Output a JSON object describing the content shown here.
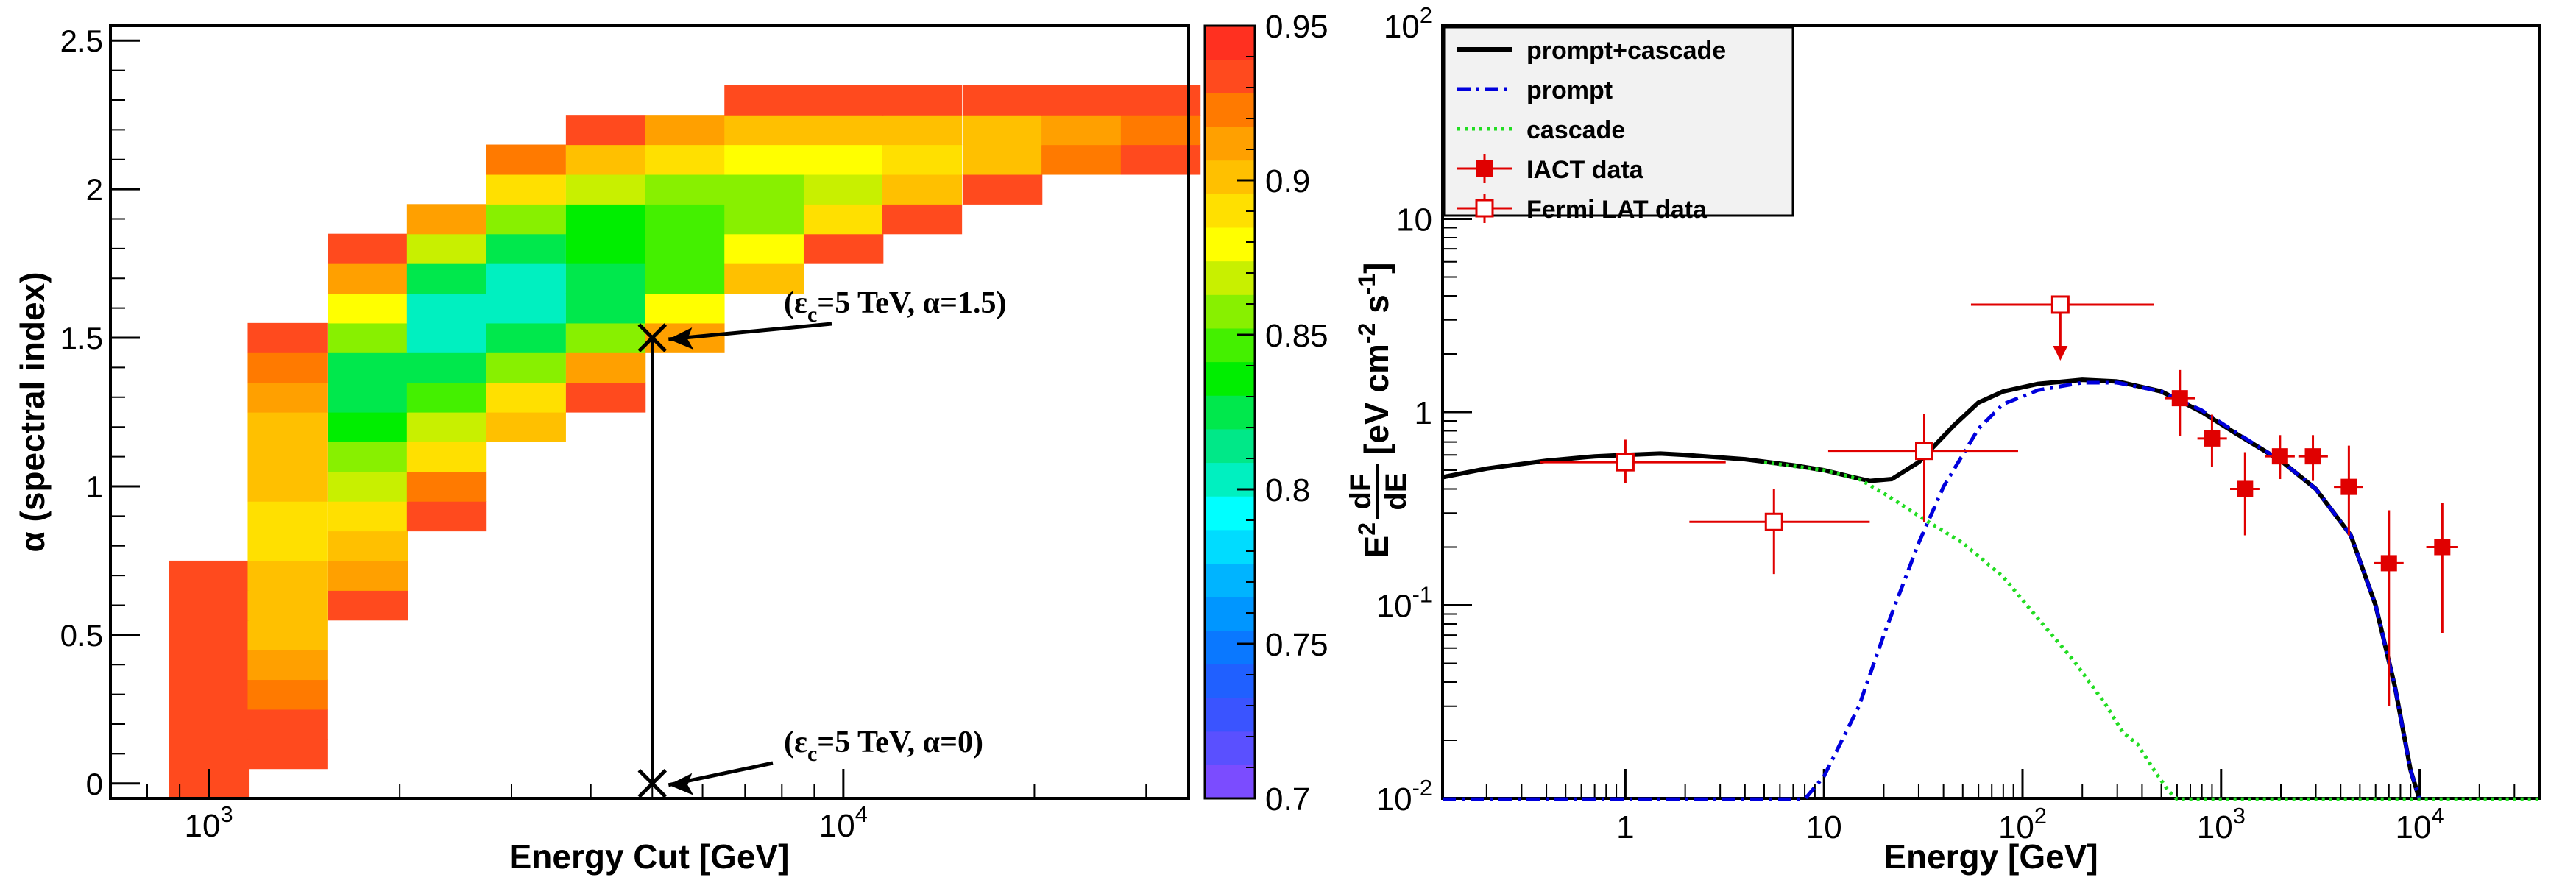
{
  "chart_data": [
    {
      "type": "heatmap",
      "xlabel": "Energy Cut [GeV]",
      "ylabel": "α (spectral index)",
      "x_scale": "log",
      "xlim": [
        700,
        35000
      ],
      "ylim": [
        -0.05,
        2.55
      ],
      "x_ticks": [
        {
          "value": 1000,
          "base": "10",
          "exp": "3"
        },
        {
          "value": 10000,
          "base": "10",
          "exp": "4"
        }
      ],
      "y_ticks": [
        {
          "value": 0,
          "label": "0"
        },
        {
          "value": 0.5,
          "label": "0.5"
        },
        {
          "value": 1,
          "label": "1"
        },
        {
          "value": 1.5,
          "label": "1.5"
        },
        {
          "value": 2,
          "label": "2"
        },
        {
          "value": 2.5,
          "label": "2.5"
        }
      ],
      "energy_bins": [
        1000,
        1330,
        1780,
        2370,
        3160,
        4220,
        5620,
        7500,
        10000,
        13300,
        17800,
        23700,
        31600
      ],
      "alpha_bins": [
        0,
        0.1,
        0.2,
        0.3,
        0.4,
        0.5,
        0.6,
        0.7,
        0.8,
        0.9,
        1.0,
        1.1,
        1.2,
        1.3,
        1.4,
        1.5,
        1.6,
        1.7,
        1.8,
        1.9,
        2.0,
        2.1,
        2.2,
        2.3
      ],
      "cell_size": {
        "log10_energy": 0.125,
        "alpha": 0.1
      },
      "z": [
        [
          0.93,
          null,
          null,
          null,
          null,
          null,
          null,
          null,
          null,
          null,
          null,
          null,
          null
        ],
        [
          0.93,
          0.93,
          null,
          null,
          null,
          null,
          null,
          null,
          null,
          null,
          null,
          null,
          null
        ],
        [
          0.93,
          0.93,
          null,
          null,
          null,
          null,
          null,
          null,
          null,
          null,
          null,
          null,
          null
        ],
        [
          0.93,
          0.92,
          null,
          null,
          null,
          null,
          null,
          null,
          null,
          null,
          null,
          null,
          null
        ],
        [
          0.93,
          0.91,
          null,
          null,
          null,
          null,
          null,
          null,
          null,
          null,
          null,
          null,
          null
        ],
        [
          0.93,
          0.9,
          null,
          null,
          null,
          null,
          null,
          null,
          null,
          null,
          null,
          null,
          null
        ],
        [
          0.93,
          0.9,
          0.93,
          null,
          null,
          null,
          null,
          null,
          null,
          null,
          null,
          null,
          null
        ],
        [
          0.93,
          0.9,
          0.91,
          null,
          null,
          null,
          null,
          null,
          null,
          null,
          null,
          null,
          null
        ],
        [
          null,
          0.89,
          0.9,
          null,
          null,
          null,
          null,
          null,
          null,
          null,
          null,
          null,
          null
        ],
        [
          null,
          0.89,
          0.89,
          0.93,
          null,
          null,
          null,
          null,
          null,
          null,
          null,
          null,
          null
        ],
        [
          null,
          0.9,
          0.87,
          0.92,
          null,
          null,
          null,
          null,
          null,
          null,
          null,
          null,
          null
        ],
        [
          null,
          0.9,
          0.86,
          0.89,
          null,
          null,
          null,
          null,
          null,
          null,
          null,
          null,
          null
        ],
        [
          null,
          0.9,
          0.84,
          0.87,
          0.9,
          null,
          null,
          null,
          null,
          null,
          null,
          null,
          null
        ],
        [
          null,
          0.91,
          0.83,
          0.85,
          0.89,
          0.93,
          null,
          null,
          null,
          null,
          null,
          null,
          null
        ],
        [
          null,
          0.92,
          0.83,
          0.82,
          0.86,
          0.91,
          null,
          null,
          null,
          null,
          null,
          null,
          null
        ],
        [
          null,
          0.93,
          0.86,
          0.8,
          0.83,
          0.86,
          0.91,
          null,
          null,
          null,
          null,
          null,
          null
        ],
        [
          null,
          null,
          0.88,
          0.8,
          0.8,
          0.82,
          0.88,
          null,
          null,
          null,
          null,
          null,
          null
        ],
        [
          null,
          null,
          0.91,
          0.83,
          0.8,
          0.82,
          0.85,
          0.9,
          null,
          null,
          null,
          null,
          null
        ],
        [
          null,
          null,
          0.93,
          0.87,
          0.83,
          0.84,
          0.85,
          0.88,
          0.93,
          null,
          null,
          null,
          null
        ],
        [
          null,
          null,
          null,
          0.91,
          0.86,
          0.84,
          0.85,
          0.86,
          0.89,
          0.93,
          null,
          null,
          null
        ],
        [
          null,
          null,
          null,
          null,
          0.89,
          0.87,
          0.86,
          0.86,
          0.87,
          0.9,
          0.93,
          null,
          null
        ],
        [
          null,
          null,
          null,
          null,
          0.92,
          0.9,
          0.89,
          0.88,
          0.88,
          0.89,
          0.9,
          0.92,
          0.93
        ],
        [
          null,
          null,
          null,
          null,
          null,
          0.93,
          0.91,
          0.9,
          0.9,
          0.9,
          0.9,
          0.91,
          0.92
        ],
        [
          null,
          null,
          null,
          null,
          null,
          null,
          null,
          0.93,
          0.93,
          0.93,
          0.93,
          0.93,
          0.93
        ]
      ],
      "colorbar": {
        "min": 0.7,
        "max": 0.95,
        "ticks": [
          "0.7",
          "0.75",
          "0.8",
          "0.85",
          "0.9",
          "0.95"
        ],
        "colors": [
          "#7b4cff",
          "#5a50ff",
          "#3a54ff",
          "#2060ff",
          "#0a78ff",
          "#0096ff",
          "#00b4ff",
          "#00dcff",
          "#00ffff",
          "#00f0c0",
          "#00e888",
          "#00e84c",
          "#00ee00",
          "#44f000",
          "#88f000",
          "#c8f000",
          "#ffff00",
          "#ffe000",
          "#ffc000",
          "#ffa000",
          "#ff7a00",
          "#ff4a1e",
          "#ff3020"
        ]
      },
      "annotations": [
        {
          "text_before": "(ε",
          "sub": "c",
          "text_after": "=5 TeV, α=1.5)",
          "marker": "x",
          "x": 5000,
          "y": 1.5
        },
        {
          "text_before": "(ε",
          "sub": "c",
          "text_after": "=5 TeV, α=0)",
          "marker": "x",
          "x": 5000,
          "y": 0
        }
      ]
    },
    {
      "type": "line",
      "xlabel": "Energy [GeV]",
      "x_scale": "log",
      "y_scale": "log",
      "xlim": [
        0.12,
        40000
      ],
      "ylim": [
        0.01,
        100
      ],
      "x_ticks": [
        {
          "value": 1,
          "label": "1"
        },
        {
          "value": 10,
          "label": "10"
        },
        {
          "value": 100,
          "base": "10",
          "exp": "2"
        },
        {
          "value": 1000,
          "base": "10",
          "exp": "3"
        },
        {
          "value": 10000,
          "base": "10",
          "exp": "4"
        }
      ],
      "y_ticks": [
        {
          "value": 0.01,
          "base": "10",
          "exp": "-2"
        },
        {
          "value": 0.1,
          "base": "10",
          "exp": "-1"
        },
        {
          "value": 1,
          "label": "1"
        },
        {
          "value": 10,
          "label": "10"
        },
        {
          "value": 100,
          "base": "10",
          "exp": "2"
        }
      ],
      "ylabel_parts": {
        "lead": "E",
        "lead_sup": "2",
        "num": "dF",
        "den": "dE",
        "unit_open": "[eV cm",
        "sup1": "-2",
        "mid": " s",
        "sup2": "-1",
        "unit_close": "]"
      },
      "legend_position": "top-left",
      "legend": [
        {
          "label": "prompt+cascade",
          "style": "solid-black"
        },
        {
          "label": "prompt",
          "style": "dashdot-blue"
        },
        {
          "label": "cascade",
          "style": "dotted-green"
        },
        {
          "label": "IACT data",
          "style": "filled-square-red"
        },
        {
          "label": "Fermi LAT data",
          "style": "open-square-red"
        }
      ],
      "series": [
        {
          "name": "prompt+cascade",
          "color": "#000000",
          "points": [
            [
              0.12,
              0.46
            ],
            [
              0.2,
              0.51
            ],
            [
              0.4,
              0.56
            ],
            [
              0.7,
              0.59
            ],
            [
              1,
              0.6
            ],
            [
              1.5,
              0.61
            ],
            [
              2,
              0.6
            ],
            [
              4,
              0.57
            ],
            [
              7,
              0.53
            ],
            [
              10,
              0.5
            ],
            [
              14,
              0.46
            ],
            [
              17,
              0.44
            ],
            [
              22,
              0.45
            ],
            [
              30,
              0.55
            ],
            [
              45,
              0.85
            ],
            [
              60,
              1.12
            ],
            [
              80,
              1.28
            ],
            [
              120,
              1.4
            ],
            [
              200,
              1.47
            ],
            [
              300,
              1.44
            ],
            [
              500,
              1.28
            ],
            [
              800,
              1.0
            ],
            [
              1200,
              0.77
            ],
            [
              2000,
              0.56
            ],
            [
              3000,
              0.4
            ],
            [
              4500,
              0.23
            ],
            [
              6000,
              0.1
            ],
            [
              7500,
              0.038
            ],
            [
              9000,
              0.014
            ],
            [
              10000,
              0.0098
            ]
          ]
        },
        {
          "name": "prompt",
          "color": "#0000dd",
          "points": [
            [
              0.12,
              0.0099
            ],
            [
              8,
              0.0099
            ],
            [
              10,
              0.013
            ],
            [
              15,
              0.03
            ],
            [
              20,
              0.07
            ],
            [
              30,
              0.21
            ],
            [
              40,
              0.41
            ],
            [
              60,
              0.82
            ],
            [
              80,
              1.1
            ],
            [
              120,
              1.3
            ],
            [
              200,
              1.42
            ],
            [
              300,
              1.42
            ],
            [
              500,
              1.28
            ],
            [
              800,
              1.02
            ],
            [
              1200,
              0.78
            ],
            [
              2000,
              0.56
            ],
            [
              3000,
              0.4
            ],
            [
              4500,
              0.23
            ],
            [
              6000,
              0.1
            ],
            [
              7500,
              0.038
            ],
            [
              9000,
              0.014
            ],
            [
              10000,
              0.0098
            ]
          ]
        },
        {
          "name": "cascade",
          "color": "#22dd22",
          "points": [
            [
              5,
              0.55
            ],
            [
              10,
              0.5
            ],
            [
              15,
              0.45
            ],
            [
              20,
              0.38
            ],
            [
              30,
              0.29
            ],
            [
              50,
              0.21
            ],
            [
              80,
              0.14
            ],
            [
              120,
              0.085
            ],
            [
              180,
              0.052
            ],
            [
              260,
              0.031
            ],
            [
              320,
              0.022
            ],
            [
              380,
              0.019
            ],
            [
              460,
              0.014
            ],
            [
              540,
              0.011
            ],
            [
              600,
              0.0099
            ],
            [
              40000,
              0.0099
            ]
          ]
        }
      ],
      "fermi_lat_data": [
        {
          "x": 1,
          "y": 0.55,
          "xlo": 0.37,
          "xhi": 3.2,
          "ylo": 0.43,
          "yhi": 0.72
        },
        {
          "x": 5.6,
          "y": 0.27,
          "xlo": 2.1,
          "xhi": 17,
          "ylo": 0.145,
          "yhi": 0.4
        },
        {
          "x": 32,
          "y": 0.63,
          "xlo": 10.5,
          "xhi": 95,
          "ylo": 0.27,
          "yhi": 0.98
        },
        {
          "x": 155,
          "y": 3.6,
          "xlo": 55,
          "xhi": 460,
          "upper_limit": true
        }
      ],
      "iact_data": [
        {
          "x": 620,
          "y": 1.18,
          "xlo": 520,
          "xhi": 740,
          "ylo": 0.75,
          "yhi": 1.65
        },
        {
          "x": 900,
          "y": 0.73,
          "xlo": 760,
          "xhi": 1070,
          "ylo": 0.52,
          "yhi": 0.97
        },
        {
          "x": 1320,
          "y": 0.4,
          "xlo": 1110,
          "xhi": 1560,
          "ylo": 0.23,
          "yhi": 0.62
        },
        {
          "x": 1980,
          "y": 0.59,
          "xlo": 1670,
          "xhi": 2350,
          "ylo": 0.45,
          "yhi": 0.76
        },
        {
          "x": 2900,
          "y": 0.59,
          "xlo": 2450,
          "xhi": 3450,
          "ylo": 0.44,
          "yhi": 0.76
        },
        {
          "x": 4400,
          "y": 0.41,
          "xlo": 3700,
          "xhi": 5200,
          "ylo": 0.23,
          "yhi": 0.67
        },
        {
          "x": 7000,
          "y": 0.165,
          "xlo": 5900,
          "xhi": 8300,
          "ylo": 0.03,
          "yhi": 0.31
        },
        {
          "x": 13000,
          "y": 0.2,
          "xlo": 10800,
          "xhi": 15500,
          "ylo": 0.072,
          "yhi": 0.34
        }
      ]
    }
  ]
}
